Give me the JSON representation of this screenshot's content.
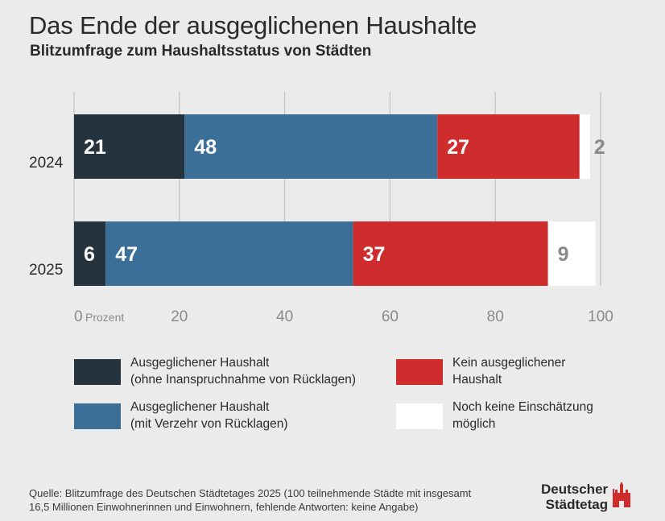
{
  "header": {
    "title": "Das Ende der ausgeglichenen Haushalte",
    "subtitle": "Blitzumfrage zum Haushaltsstatus von Städten"
  },
  "chart_data": {
    "type": "bar",
    "orientation": "horizontal",
    "stacked": true,
    "categories": [
      "2024",
      "2025"
    ],
    "series": [
      {
        "name": "Ausgeglichener Haushalt (ohne Inanspruchnahme von Rücklagen)",
        "color": "#25333f",
        "label_color": "#ffffff",
        "values": [
          21,
          6
        ]
      },
      {
        "name": "Ausgeglichener Haushalt (mit Verzehr von Rücklagen)",
        "color": "#3c6f98",
        "label_color": "#ffffff",
        "values": [
          48,
          47
        ]
      },
      {
        "name": "Kein ausgeglichener Haushalt",
        "color": "#cf2c2e",
        "label_color": "#ffffff",
        "values": [
          27,
          37
        ]
      },
      {
        "name": "Noch keine Einschätzung möglich",
        "color": "#ffffff",
        "label_color": "#8a8a8a",
        "values": [
          2,
          9
        ]
      }
    ],
    "xlim": [
      0,
      100
    ],
    "xticks": [
      0,
      20,
      40,
      60,
      80,
      100
    ],
    "xlabel": "Prozent",
    "grid": true
  },
  "legend": {
    "items": [
      {
        "line1": "Ausgeglichener Haushalt",
        "line2": "(ohne Inanspruchnahme von Rücklagen)",
        "color": "#25333f"
      },
      {
        "line1": "Kein ausgeglichener",
        "line2": "Haushalt",
        "color": "#cf2c2e"
      },
      {
        "line1": "Ausgeglichener Haushalt",
        "line2": "(mit Verzehr von Rücklagen)",
        "color": "#3c6f98"
      },
      {
        "line1": "Noch keine Einschätzung",
        "line2": "möglich",
        "color": "#ffffff"
      }
    ]
  },
  "footer": {
    "source_line1": "Quelle: Blitzumfrage des Deutschen Städtetages 2025 (100 teilnehmende Städte mit insgesamt",
    "source_line2": "16,5 Millionen Einwohnerinnen und Einwohnern, fehlende Antworten: keine Angabe)"
  },
  "brand": {
    "line1": "Deutscher",
    "line2": "Städtetag",
    "color": "#cf2c2e"
  }
}
